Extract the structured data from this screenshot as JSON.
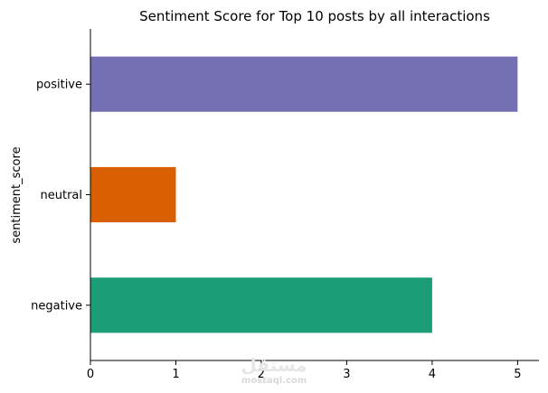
{
  "chart_data": {
    "type": "bar",
    "orientation": "horizontal",
    "title": "Sentiment Score for Top 10 posts by all interactions",
    "xlabel": "",
    "ylabel": "sentiment_score",
    "categories": [
      "negative",
      "neutral",
      "positive"
    ],
    "values": [
      4,
      1,
      5
    ],
    "colors": [
      "#1b9e77",
      "#d95f02",
      "#7570b3"
    ],
    "xlim": [
      0,
      5.25
    ],
    "xticks": [
      0,
      1,
      2,
      3,
      4,
      5
    ],
    "grid": false,
    "spines": [
      "left",
      "bottom"
    ]
  },
  "watermark": {
    "logo": "مستقل",
    "site": "mostaql.com"
  }
}
